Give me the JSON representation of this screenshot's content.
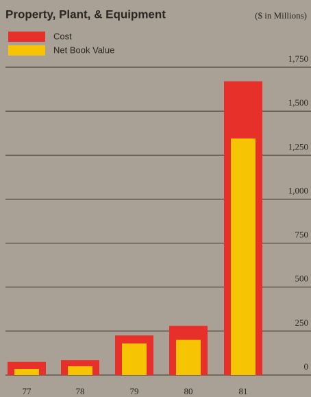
{
  "chart_data": {
    "type": "bar",
    "title": "Property, Plant, & Equipment",
    "subtitle": "($ in Millions)",
    "categories": [
      "77",
      "78",
      "79",
      "80",
      "81"
    ],
    "series": [
      {
        "name": "Cost",
        "color": "#e8302a",
        "values": [
          75,
          85,
          225,
          280,
          1670
        ]
      },
      {
        "name": "Net Book Value",
        "color": "#f7c404",
        "values": [
          35,
          50,
          180,
          200,
          1345
        ]
      }
    ],
    "ylim": [
      0,
      1750
    ],
    "yticks": [
      0,
      250,
      500,
      750,
      {
        "value": 1000,
        "label": "1,000"
      },
      {
        "value": 1250,
        "label": "1,250"
      },
      {
        "value": 1500,
        "label": "1,500"
      },
      {
        "value": 1750,
        "label": "1,750"
      }
    ],
    "grid": true
  }
}
